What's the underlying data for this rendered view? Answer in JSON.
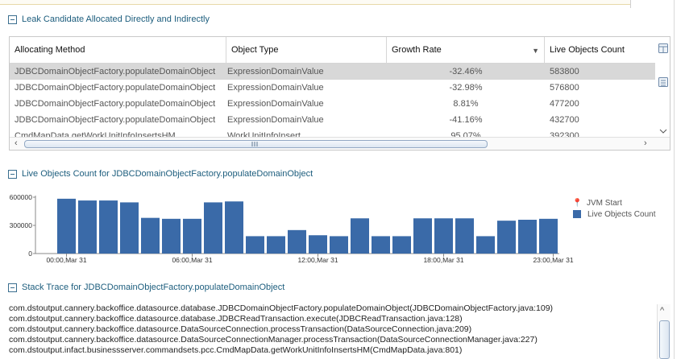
{
  "leak_section": {
    "title": "Leak Candidate Allocated Directly and Indirectly"
  },
  "table": {
    "columns": [
      "Allocating Method",
      "Object Type",
      "Growth Rate",
      "Live Objects Count"
    ],
    "rows": [
      {
        "method": "JDBCDomainObjectFactory.populateDomainObject",
        "type": "ExpressionDomainValue",
        "growth": "-32.46%",
        "count": "583800",
        "selected": true
      },
      {
        "method": "JDBCDomainObjectFactory.populateDomainObject",
        "type": "ExpressionDomainValue",
        "growth": "-32.98%",
        "count": "576800"
      },
      {
        "method": "JDBCDomainObjectFactory.populateDomainObject",
        "type": "ExpressionDomainValue",
        "growth": "8.81%",
        "count": "477200"
      },
      {
        "method": "JDBCDomainObjectFactory.populateDomainObject",
        "type": "ExpressionDomainValue",
        "growth": "-41.16%",
        "count": "432700"
      },
      {
        "method": "CmdMapData.getWorkUnitInfoInsertsHM",
        "type": "WorkUnitInfoInsert",
        "growth": "95.07%",
        "count": "392300"
      }
    ]
  },
  "live_section": {
    "title": "Live Objects Count for JDBCDomainObjectFactory.populateDomainObject"
  },
  "chart_data": {
    "type": "bar",
    "title": "",
    "xlabel": "",
    "ylabel": "",
    "ylim": [
      0,
      600000
    ],
    "yticks": [
      "0",
      "300000",
      "600000"
    ],
    "xticks": [
      "00:00,Mar 31",
      "06:00,Mar 31",
      "12:00,Mar 31",
      "18:00,Mar 31",
      "23:00,Mar 31"
    ],
    "legend": [
      "JVM Start",
      "Live Objects Count"
    ],
    "legend_position": "right",
    "series": [
      {
        "name": "Live Objects Count",
        "color": "#3a6aa8",
        "values": [
          583800,
          565000,
          565000,
          545000,
          380000,
          370000,
          370000,
          545000,
          555000,
          185000,
          185000,
          250000,
          195000,
          185000,
          375000,
          185000,
          185000,
          375000,
          375000,
          375000,
          185000,
          350000,
          360000,
          370000
        ]
      }
    ]
  },
  "stack_section": {
    "title": "Stack Trace for JDBCDomainObjectFactory.populateDomainObject"
  },
  "stack_lines": [
    "com.dstoutput.cannery.backoffice.datasource.database.JDBCDomainObjectFactory.populateDomainObject(JDBCDomainObjectFactory.java:109)",
    "com.dstoutput.cannery.backoffice.datasource.database.JDBCReadTransaction.execute(JDBCReadTransaction.java:128)",
    "com.dstoutput.cannery.backoffice.datasource.DataSourceConnection.processTransaction(DataSourceConnection.java:209)",
    "com.dstoutput.cannery.backoffice.datasource.DataSourceConnectionManager.processTransaction(DataSourceConnectionManager.java:227)",
    "com.dstoutput.infact.businessserver.commandsets.pcc.CmdMapData.getWorkUnitInfoInsertsHM(CmdMapData.java:801)"
  ],
  "icons": {
    "collapse": "collapse-toggle-icon",
    "sort": "sort-icon",
    "column_chooser": "column-chooser-icon",
    "scroll_arrows": "scroll-arrow-icon",
    "legend_pin": "pin-icon"
  }
}
